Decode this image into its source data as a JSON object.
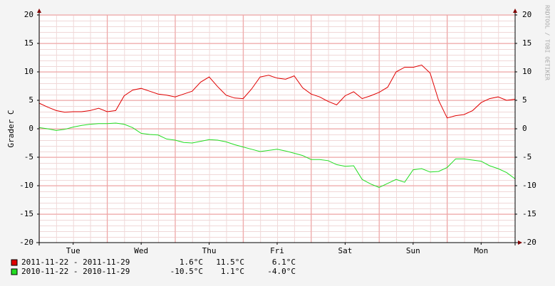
{
  "chart_data": {
    "type": "line",
    "ylabel": "Grader C",
    "side_text": "RRDTOOL / TOBI OETIKER",
    "x": [
      0,
      3,
      6,
      9,
      12,
      15,
      18,
      21,
      24,
      27,
      30,
      33,
      36,
      39,
      42,
      45,
      48,
      51,
      54,
      57,
      60,
      63,
      66,
      69,
      72,
      75,
      78,
      81,
      84,
      87,
      90,
      93,
      96,
      99,
      102,
      105,
      108,
      111,
      114,
      117,
      120,
      123,
      126,
      129,
      132,
      135,
      138,
      141,
      144,
      147,
      150,
      153,
      156,
      159,
      162,
      165,
      168
    ],
    "xlim": [
      0,
      168
    ],
    "xticks": [
      {
        "value": 12,
        "label": "Tue"
      },
      {
        "value": 36,
        "label": "Wed"
      },
      {
        "value": 60,
        "label": "Thu"
      },
      {
        "value": 84,
        "label": "Fri"
      },
      {
        "value": 108,
        "label": "Sat"
      },
      {
        "value": 132,
        "label": "Sun"
      },
      {
        "value": 156,
        "label": "Mon"
      }
    ],
    "xgrid": [
      24,
      48,
      72,
      96,
      120,
      144
    ],
    "ylim": [
      -20,
      20
    ],
    "yticks": [
      -20,
      -15,
      -10,
      -5,
      0,
      5,
      10,
      15,
      20
    ],
    "grid": true,
    "series": [
      {
        "name": "2011-11-22 - 2011-11-29",
        "color": "#e00000",
        "min": "1.6°C",
        "max": "11.5°C",
        "avg": "6.1°C",
        "values": [
          4.5,
          3.8,
          3.2,
          2.9,
          3.0,
          3.0,
          3.2,
          3.6,
          3.0,
          3.2,
          5.8,
          6.8,
          7.1,
          6.6,
          6.1,
          5.9,
          5.6,
          6.1,
          6.6,
          8.2,
          9.1,
          7.4,
          5.9,
          5.4,
          5.3,
          7.0,
          9.1,
          9.4,
          8.9,
          8.7,
          9.3,
          7.2,
          6.1,
          5.6,
          4.8,
          4.2,
          5.8,
          6.5,
          5.3,
          5.8,
          6.4,
          7.3,
          10.0,
          10.8,
          10.8,
          11.2,
          9.8,
          5.0,
          1.9,
          2.3,
          2.5,
          3.2,
          4.6,
          5.3,
          5.6,
          5.0,
          5.2
        ]
      },
      {
        "name": "2010-11-22 - 2010-11-29",
        "color": "#22dd22",
        "min": "-10.5°C",
        "max": "1.1°C",
        "avg": "-4.0°C",
        "values": [
          0.2,
          0.0,
          -0.3,
          -0.1,
          0.3,
          0.6,
          0.8,
          0.9,
          0.9,
          1.0,
          0.8,
          0.2,
          -0.8,
          -1.0,
          -1.1,
          -1.8,
          -2.0,
          -2.4,
          -2.5,
          -2.2,
          -1.9,
          -2.0,
          -2.3,
          -2.8,
          -3.2,
          -3.6,
          -4.0,
          -3.8,
          -3.6,
          -3.9,
          -4.3,
          -4.7,
          -5.4,
          -5.4,
          -5.6,
          -6.3,
          -6.6,
          -6.5,
          -8.9,
          -9.7,
          -10.3,
          -9.6,
          -8.9,
          -9.4,
          -7.2,
          -7.0,
          -7.6,
          -7.5,
          -6.8,
          -5.3,
          -5.3,
          -5.5,
          -5.7,
          -6.5,
          -7.0,
          -7.7,
          -8.8
        ]
      }
    ]
  }
}
